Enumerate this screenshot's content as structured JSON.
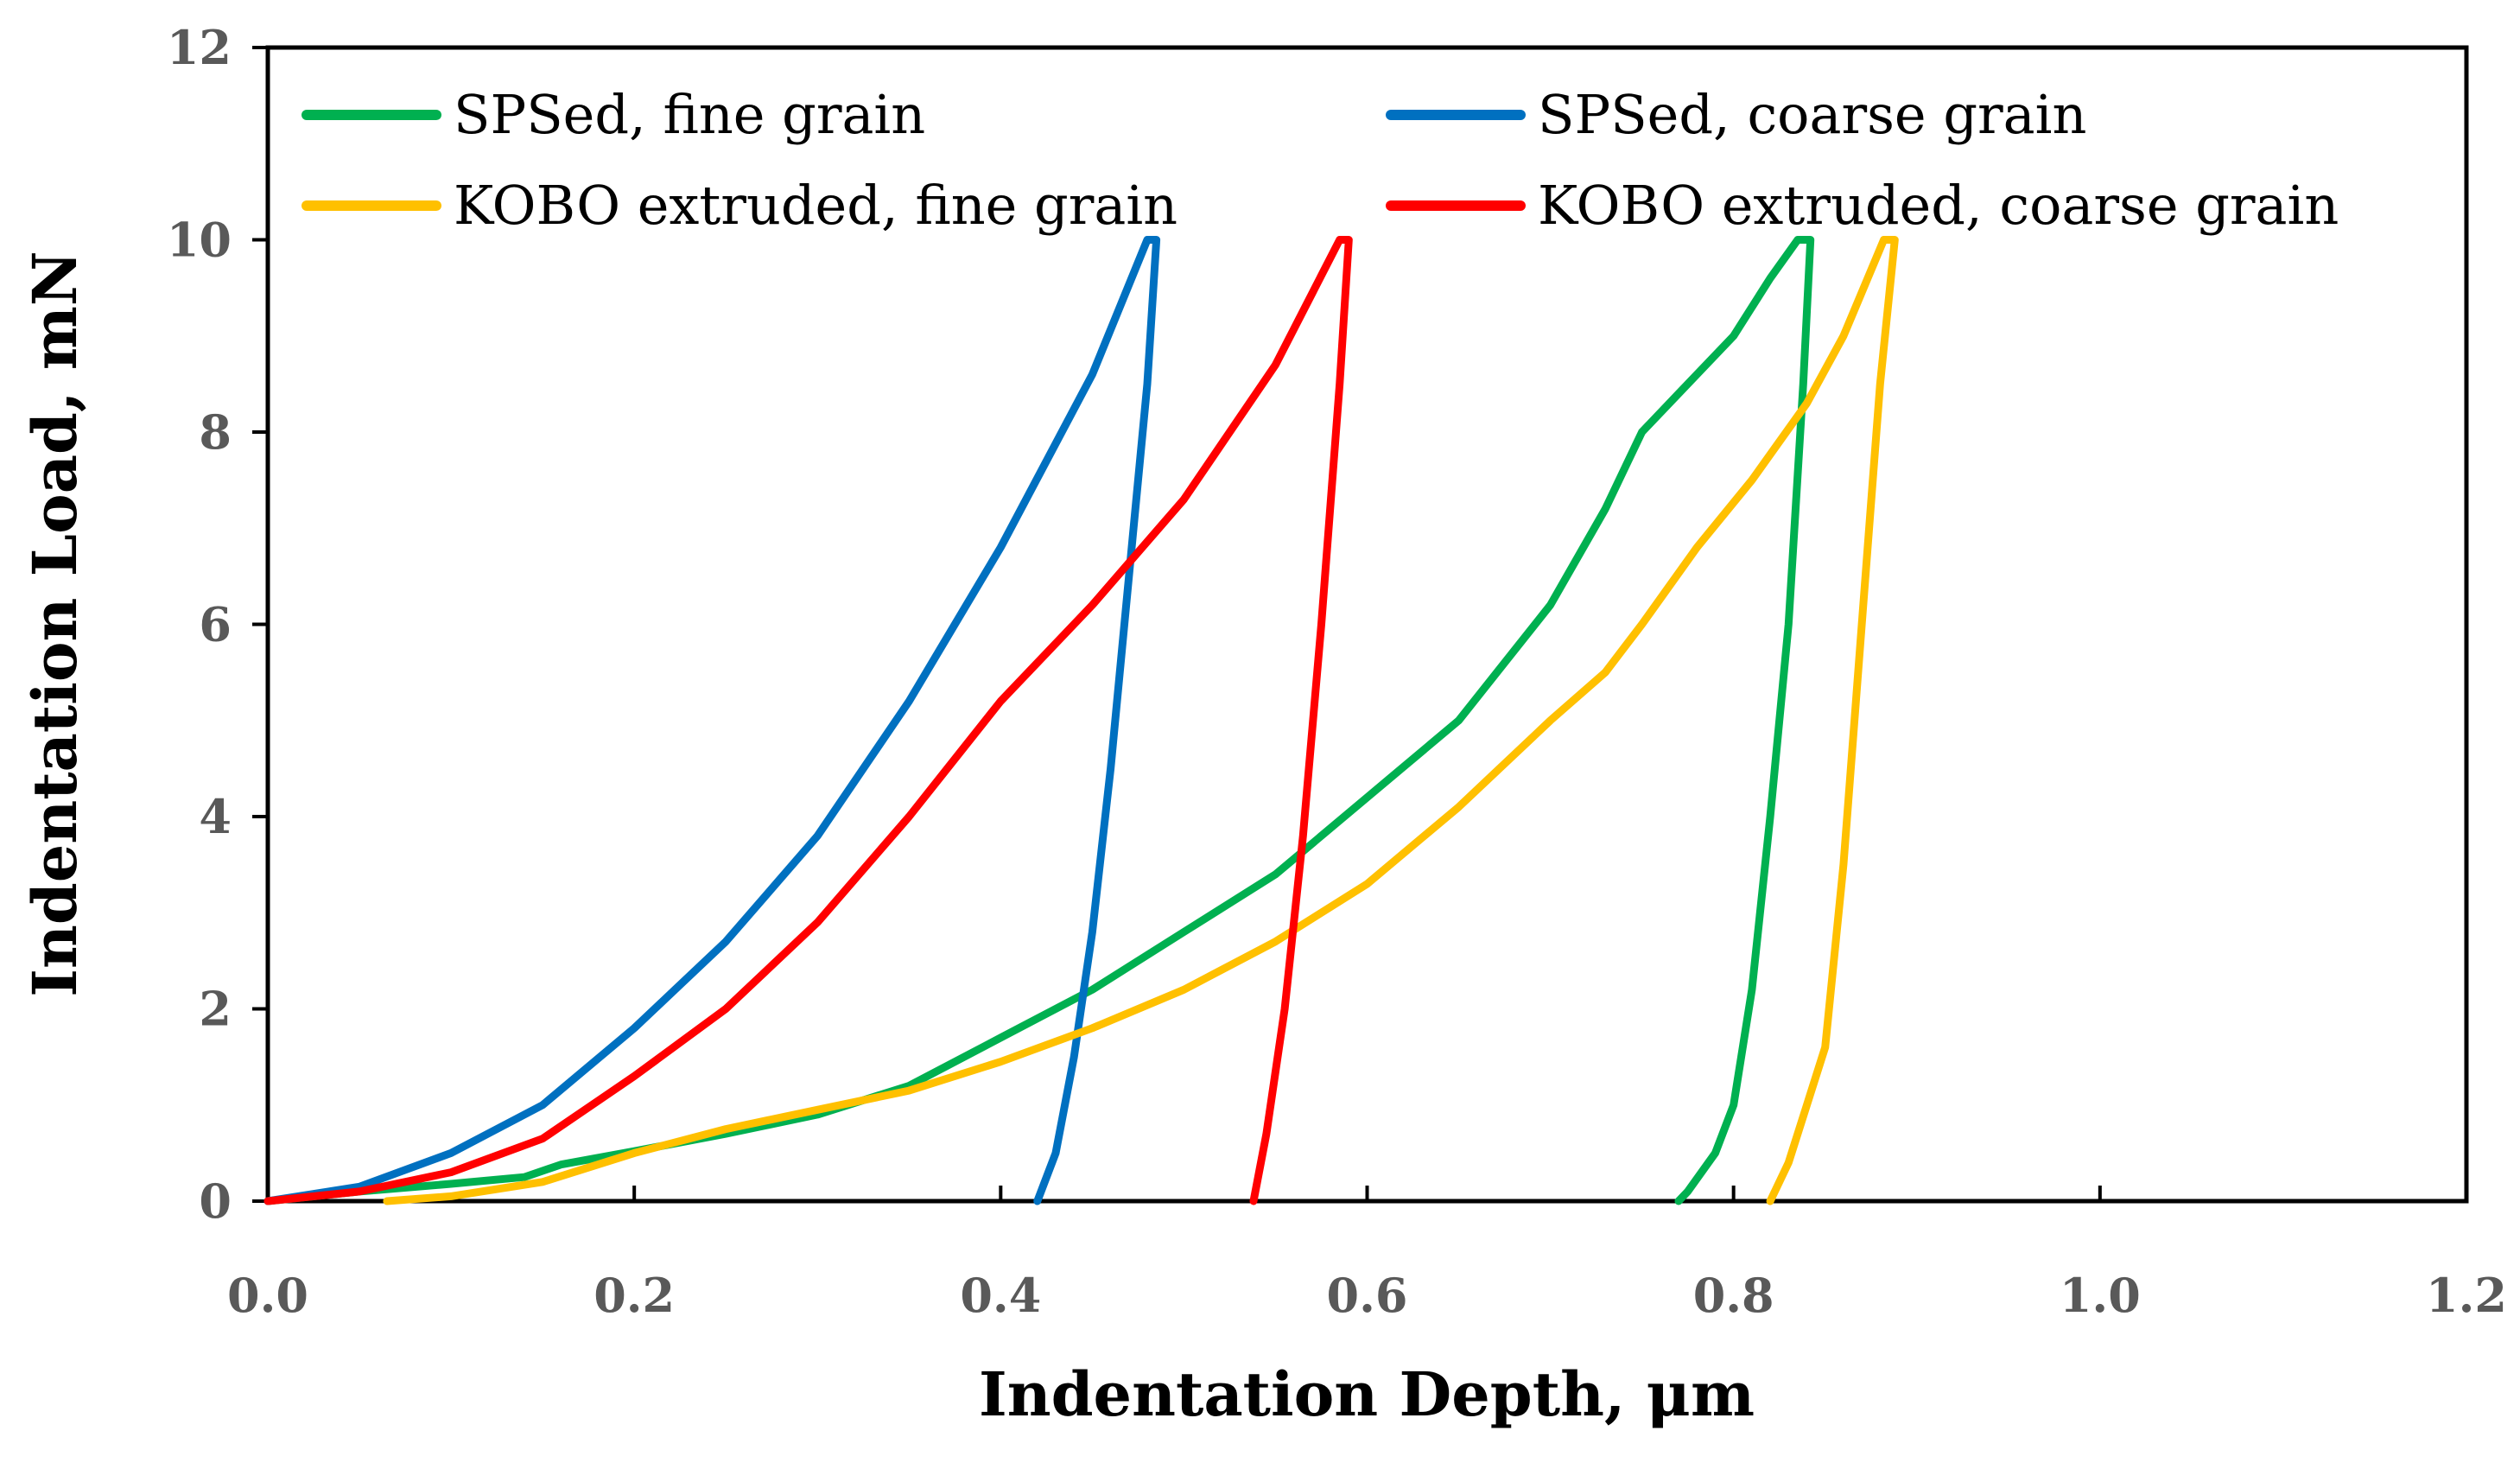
{
  "chart_data": {
    "type": "line",
    "title": "",
    "xlabel": "Indentation Depth, μm",
    "ylabel": "Indentation Load, mN",
    "xlim": [
      0,
      1.2
    ],
    "ylim": [
      0,
      12
    ],
    "x_ticks": [
      0.0,
      0.2,
      0.4,
      0.6,
      0.8,
      1.0,
      1.2
    ],
    "x_tick_labels": [
      "0.0",
      "0.2",
      "0.4",
      "0.6",
      "0.8",
      "1.0",
      "1.2"
    ],
    "y_ticks": [
      0,
      2,
      4,
      6,
      8,
      10,
      12
    ],
    "y_tick_labels": [
      "0",
      "2",
      "4",
      "6",
      "8",
      "10",
      "12"
    ],
    "grid": false,
    "legend_position": "top",
    "series": [
      {
        "name": "SPSed, fine grain",
        "color": "#00b050",
        "points": [
          [
            0.0,
            0.0
          ],
          [
            0.05,
            0.1
          ],
          [
            0.1,
            0.18
          ],
          [
            0.14,
            0.25
          ],
          [
            0.16,
            0.38
          ],
          [
            0.2,
            0.52
          ],
          [
            0.25,
            0.7
          ],
          [
            0.3,
            0.9
          ],
          [
            0.35,
            1.2
          ],
          [
            0.4,
            1.7
          ],
          [
            0.45,
            2.2
          ],
          [
            0.5,
            2.8
          ],
          [
            0.55,
            3.4
          ],
          [
            0.6,
            4.2
          ],
          [
            0.65,
            5.0
          ],
          [
            0.7,
            6.2
          ],
          [
            0.73,
            7.2
          ],
          [
            0.75,
            8.0
          ],
          [
            0.77,
            8.4
          ],
          [
            0.8,
            9.0
          ],
          [
            0.82,
            9.6
          ],
          [
            0.835,
            10.0
          ],
          [
            0.842,
            10.0
          ],
          [
            0.838,
            8.5
          ],
          [
            0.83,
            6.0
          ],
          [
            0.82,
            4.0
          ],
          [
            0.81,
            2.2
          ],
          [
            0.8,
            1.0
          ],
          [
            0.79,
            0.5
          ],
          [
            0.775,
            0.1
          ],
          [
            0.77,
            0.0
          ]
        ]
      },
      {
        "name": "SPSed, coarse grain",
        "color": "#0070c0",
        "points": [
          [
            0.0,
            0.0
          ],
          [
            0.05,
            0.15
          ],
          [
            0.1,
            0.5
          ],
          [
            0.15,
            1.0
          ],
          [
            0.2,
            1.8
          ],
          [
            0.25,
            2.7
          ],
          [
            0.3,
            3.8
          ],
          [
            0.35,
            5.2
          ],
          [
            0.4,
            6.8
          ],
          [
            0.45,
            8.6
          ],
          [
            0.48,
            10.0
          ],
          [
            0.485,
            10.0
          ],
          [
            0.48,
            8.5
          ],
          [
            0.47,
            6.5
          ],
          [
            0.46,
            4.5
          ],
          [
            0.45,
            2.8
          ],
          [
            0.44,
            1.5
          ],
          [
            0.43,
            0.5
          ],
          [
            0.42,
            0.0
          ]
        ]
      },
      {
        "name": "KOBO extruded, fine grain",
        "color": "#ffc000",
        "points": [
          [
            0.065,
            0.0
          ],
          [
            0.1,
            0.05
          ],
          [
            0.15,
            0.2
          ],
          [
            0.2,
            0.5
          ],
          [
            0.25,
            0.75
          ],
          [
            0.3,
            0.95
          ],
          [
            0.35,
            1.15
          ],
          [
            0.4,
            1.45
          ],
          [
            0.45,
            1.8
          ],
          [
            0.5,
            2.2
          ],
          [
            0.55,
            2.7
          ],
          [
            0.6,
            3.3
          ],
          [
            0.65,
            4.1
          ],
          [
            0.7,
            5.0
          ],
          [
            0.73,
            5.5
          ],
          [
            0.75,
            6.0
          ],
          [
            0.78,
            6.8
          ],
          [
            0.81,
            7.5
          ],
          [
            0.84,
            8.3
          ],
          [
            0.86,
            9.0
          ],
          [
            0.882,
            10.0
          ],
          [
            0.888,
            10.0
          ],
          [
            0.88,
            8.5
          ],
          [
            0.87,
            6.0
          ],
          [
            0.86,
            3.5
          ],
          [
            0.85,
            1.6
          ],
          [
            0.84,
            1.0
          ],
          [
            0.83,
            0.4
          ],
          [
            0.82,
            0.0
          ]
        ]
      },
      {
        "name": "KOBO extruded, coarse grain",
        "color": "#ff0000",
        "points": [
          [
            0.0,
            0.0
          ],
          [
            0.05,
            0.1
          ],
          [
            0.1,
            0.3
          ],
          [
            0.15,
            0.65
          ],
          [
            0.2,
            1.3
          ],
          [
            0.25,
            2.0
          ],
          [
            0.3,
            2.9
          ],
          [
            0.35,
            4.0
          ],
          [
            0.4,
            5.2
          ],
          [
            0.45,
            6.2
          ],
          [
            0.5,
            7.3
          ],
          [
            0.55,
            8.7
          ],
          [
            0.585,
            10.0
          ],
          [
            0.59,
            10.0
          ],
          [
            0.585,
            8.5
          ],
          [
            0.575,
            6.0
          ],
          [
            0.565,
            3.8
          ],
          [
            0.555,
            2.0
          ],
          [
            0.545,
            0.7
          ],
          [
            0.538,
            0.0
          ]
        ]
      }
    ]
  }
}
